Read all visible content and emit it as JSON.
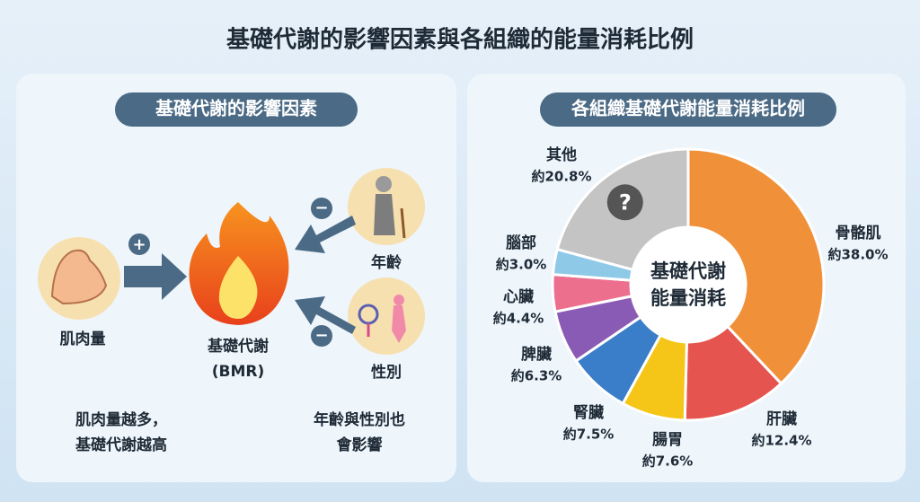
{
  "title": "基礎代謝的影響因素與各組織的能量消耗比例",
  "left_panel": {
    "title": "基礎代謝的影響因素",
    "center": [
      "基礎代謝",
      "(BMR)"
    ],
    "factors": [
      {
        "label": "肌肉量",
        "sign": "+"
      },
      {
        "label": "年齡",
        "sign": "−"
      },
      {
        "label": "性別",
        "sign": "−"
      }
    ],
    "notes": [
      [
        "肌肉量越多，",
        "基礎代謝越高"
      ],
      [
        "年齡與性別也",
        "會影響"
      ]
    ]
  },
  "chart_data": {
    "type": "donut",
    "title": "各組織基礎代謝能量消耗比例",
    "center_label": [
      "基礎代謝",
      "能量消耗"
    ],
    "categories": [
      "骨骼肌",
      "肝臟",
      "腸胃",
      "腎臟",
      "脾臟",
      "心臟",
      "腦部",
      "其他"
    ],
    "values": [
      38.0,
      12.4,
      7.6,
      7.5,
      6.3,
      4.4,
      3.0,
      20.8
    ],
    "value_labels": [
      "約38.0%",
      "約12.4%",
      "約7.6%",
      "約7.5%",
      "約6.3%",
      "約4.4%",
      "約3.0%",
      "約20.8%"
    ],
    "colors": [
      "#f0913a",
      "#e5544e",
      "#f5c518",
      "#3a7dc9",
      "#8a5bb5",
      "#ec6f8e",
      "#8ec9e8",
      "#c4c4c4"
    ],
    "other_icon": "?"
  }
}
